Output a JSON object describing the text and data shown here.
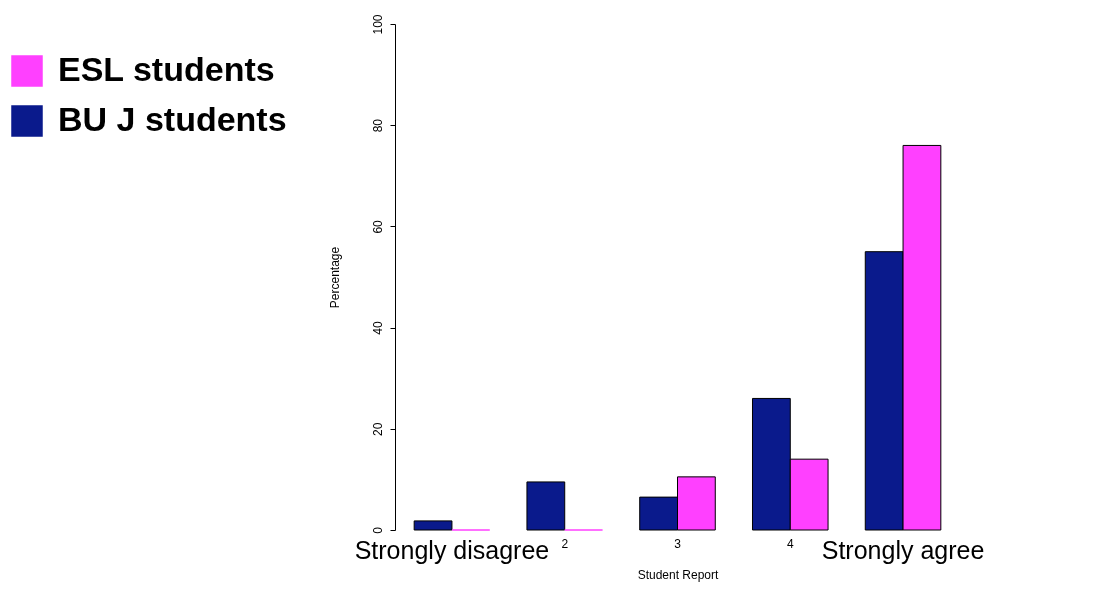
{
  "chart_data": {
    "type": "bar",
    "xlabel": "Student Report",
    "ylabel": "Percentage",
    "categories": [
      "Strongly disagree",
      "2",
      "3",
      "4",
      "Strongly agree"
    ],
    "series": [
      {
        "name": "BU J students",
        "color": "#0a1a8c",
        "values": [
          1.8,
          9.5,
          6.5,
          26,
          55
        ]
      },
      {
        "name": "ESL students",
        "color": "#ff40ff",
        "values": [
          0,
          0,
          10.5,
          14,
          76
        ]
      }
    ],
    "ylim": [
      0,
      100
    ],
    "yticks": [
      0,
      20,
      40,
      60,
      80,
      100
    ],
    "grid": false,
    "legend": "top left"
  }
}
